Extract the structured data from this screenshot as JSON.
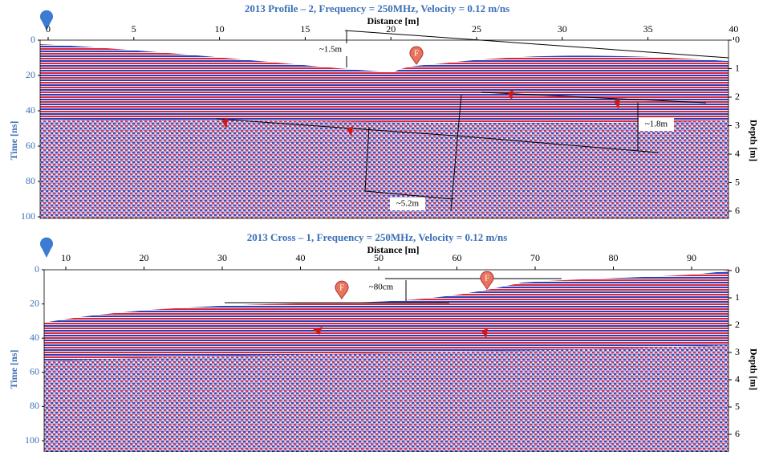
{
  "panels": [
    {
      "title": "2013 Profile – 2, Frequency = 250MHz, Velocity = 0.12 m/ns",
      "x_label": "Distance [m]",
      "x_ticks": [
        "0",
        "5",
        "10",
        "15",
        "20",
        "25",
        "30",
        "35",
        "40"
      ],
      "y_label": "Time [ns]",
      "y_ticks": [
        "0",
        "20",
        "40",
        "60",
        "80",
        "100"
      ],
      "y2_label": "Depth [m]",
      "y2_ticks": [
        "0",
        "1",
        "2",
        "3",
        "4",
        "5",
        "6"
      ],
      "annotations": [
        "~1.5m",
        "~1.8m",
        "~5.2m"
      ],
      "markers": [
        "F"
      ]
    },
    {
      "title": "2013 Cross – 1, Frequency = 250MHz, Velocity = 0.12 m/ns",
      "x_label": "Distance [m]",
      "x_ticks": [
        "10",
        "20",
        "30",
        "40",
        "50",
        "60",
        "70",
        "80",
        "90"
      ],
      "y_label": "Time [ns]",
      "y_ticks": [
        "0",
        "20",
        "40",
        "60",
        "80",
        "100"
      ],
      "y2_label": "Depth [m]",
      "y2_ticks": [
        "0",
        "1",
        "2",
        "3",
        "4",
        "5",
        "6"
      ],
      "annotations": [
        "~80cm"
      ],
      "markers": [
        "F",
        "F"
      ]
    }
  ]
}
